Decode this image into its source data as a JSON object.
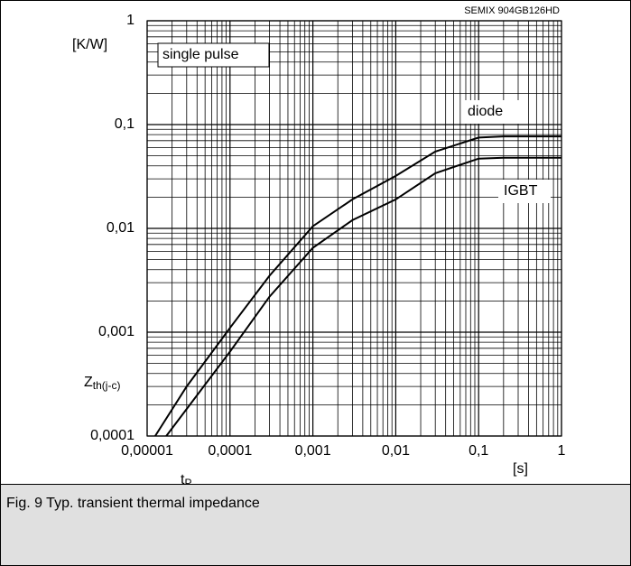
{
  "chart_data": {
    "type": "line",
    "title": "SEMIX 904GB126HD",
    "yunit": "[K/W]",
    "ylabel_main": "Z",
    "ylabel_sub": "th(j-c)",
    "xlabel_main": "t",
    "xlabel_sub": "P",
    "xunit": "[s]",
    "annotation": "single pulse",
    "log_x": true,
    "log_y": true,
    "grid": true,
    "xlim": [
      1e-05,
      1
    ],
    "ylim": [
      0.0001,
      1
    ],
    "xticks": [
      {
        "value": 1e-05,
        "label": "0,00001"
      },
      {
        "value": 0.0001,
        "label": "0,0001"
      },
      {
        "value": 0.001,
        "label": "0,001"
      },
      {
        "value": 0.01,
        "label": "0,01"
      },
      {
        "value": 0.1,
        "label": "0,1"
      },
      1
    ],
    "yticks": [
      {
        "value": 0.0001,
        "label": "0,0001"
      },
      {
        "value": 0.001,
        "label": "0,001"
      },
      {
        "value": 0.01,
        "label": "0,01"
      },
      {
        "value": 0.1,
        "label": "0,1"
      },
      1
    ],
    "series": [
      {
        "name": "diode",
        "color": "#000000",
        "x": [
          1.25e-05,
          3e-05,
          0.0001,
          0.0003,
          0.001,
          0.003,
          0.01,
          0.03,
          0.1,
          0.2,
          1
        ],
        "values": [
          0.0001,
          0.0003,
          0.0011,
          0.0035,
          0.0105,
          0.019,
          0.032,
          0.055,
          0.075,
          0.077,
          0.077
        ]
      },
      {
        "name": "IGBT",
        "color": "#000000",
        "x": [
          1.7e-05,
          0.0001,
          0.0003,
          0.001,
          0.003,
          0.01,
          0.03,
          0.1,
          0.2,
          1
        ],
        "values": [
          0.0001,
          0.00065,
          0.0022,
          0.0065,
          0.012,
          0.019,
          0.034,
          0.047,
          0.048,
          0.048
        ]
      }
    ]
  },
  "caption": "Fig. 9 Typ. transient thermal impedance"
}
